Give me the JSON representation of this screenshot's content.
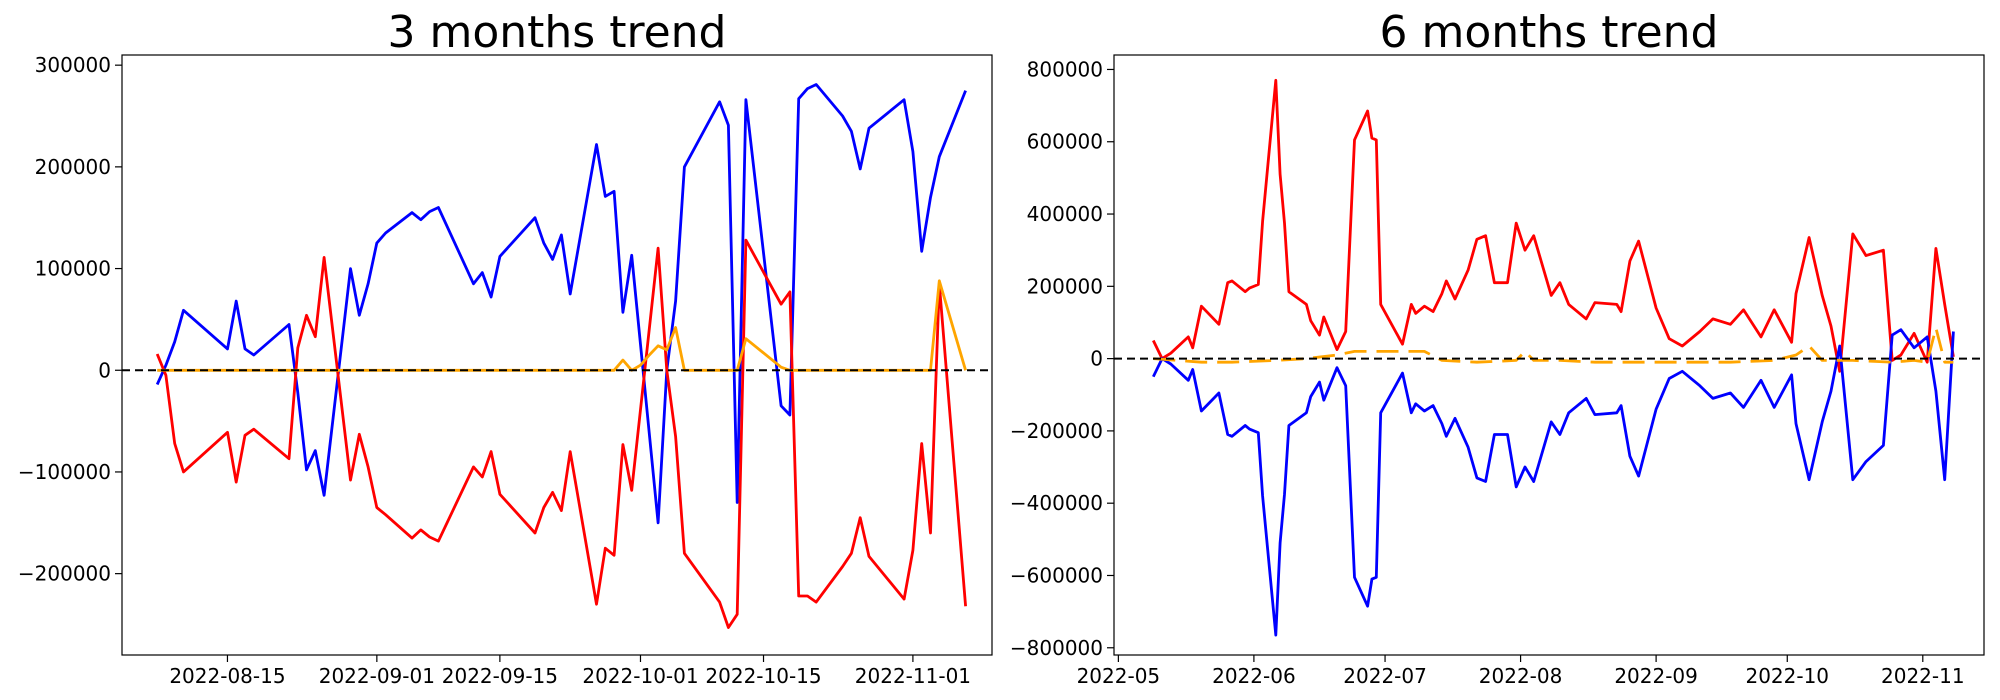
{
  "chart_data": [
    {
      "type": "line",
      "title": "3 months trend",
      "xlabel": "",
      "ylabel": "",
      "x_type": "date",
      "xlim": [
        "2022-08-03",
        "2022-11-10"
      ],
      "ylim": [
        -280000,
        310000
      ],
      "x_ticks": [
        "2022-08-15",
        "2022-09-01",
        "2022-09-15",
        "2022-10-01",
        "2022-10-15",
        "2022-11-01"
      ],
      "y_ticks": [
        -200000,
        -100000,
        0,
        100000,
        200000,
        300000
      ],
      "grid": false,
      "legend": "none",
      "zero_line": {
        "y": 0,
        "color": "#000000",
        "style": "dashed"
      },
      "series": [
        {
          "color": "#0000ff",
          "style": "solid",
          "x": [
            "2022-08-07",
            "2022-08-08",
            "2022-08-09",
            "2022-08-10",
            "2022-08-15",
            "2022-08-16",
            "2022-08-17",
            "2022-08-18",
            "2022-08-22",
            "2022-08-23",
            "2022-08-24",
            "2022-08-25",
            "2022-08-26",
            "2022-08-29",
            "2022-08-30",
            "2022-08-31",
            "2022-09-01",
            "2022-09-02",
            "2022-09-05",
            "2022-09-06",
            "2022-09-07",
            "2022-09-08",
            "2022-09-12",
            "2022-09-13",
            "2022-09-14",
            "2022-09-15",
            "2022-09-19",
            "2022-09-20",
            "2022-09-21",
            "2022-09-22",
            "2022-09-23",
            "2022-09-26",
            "2022-09-27",
            "2022-09-28",
            "2022-09-29",
            "2022-09-30",
            "2022-10-03",
            "2022-10-04",
            "2022-10-05",
            "2022-10-06",
            "2022-10-10",
            "2022-10-11",
            "2022-10-12",
            "2022-10-13",
            "2022-10-17",
            "2022-10-18",
            "2022-10-19",
            "2022-10-20",
            "2022-10-21",
            "2022-10-24",
            "2022-10-25",
            "2022-10-26",
            "2022-10-27",
            "2022-10-31",
            "2022-11-01",
            "2022-11-02",
            "2022-11-03",
            "2022-11-04",
            "2022-11-07"
          ],
          "y": [
            -14000,
            5000,
            28000,
            59000,
            21000,
            68000,
            21000,
            15000,
            45000,
            -22000,
            -98000,
            -79000,
            -123000,
            100000,
            54000,
            85000,
            125000,
            135000,
            155000,
            148000,
            156000,
            160000,
            85000,
            96000,
            72000,
            112000,
            150000,
            125000,
            109000,
            133000,
            75000,
            222000,
            171000,
            176000,
            57000,
            113000,
            -150000,
            0,
            68000,
            200000,
            264000,
            241000,
            -130000,
            266000,
            -35000,
            -44000,
            267000,
            277000,
            281000,
            250000,
            235000,
            198000,
            238000,
            266000,
            215000,
            117000,
            170000,
            210000,
            275000
          ]
        },
        {
          "color": "#ff0000",
          "style": "solid",
          "x": [
            "2022-08-07",
            "2022-08-08",
            "2022-08-09",
            "2022-08-10",
            "2022-08-15",
            "2022-08-16",
            "2022-08-17",
            "2022-08-18",
            "2022-08-22",
            "2022-08-23",
            "2022-08-24",
            "2022-08-25",
            "2022-08-26",
            "2022-08-29",
            "2022-08-30",
            "2022-08-31",
            "2022-09-01",
            "2022-09-02",
            "2022-09-05",
            "2022-09-06",
            "2022-09-07",
            "2022-09-08",
            "2022-09-12",
            "2022-09-13",
            "2022-09-14",
            "2022-09-15",
            "2022-09-19",
            "2022-09-20",
            "2022-09-21",
            "2022-09-22",
            "2022-09-23",
            "2022-09-26",
            "2022-09-27",
            "2022-09-28",
            "2022-09-29",
            "2022-09-30",
            "2022-10-03",
            "2022-10-04",
            "2022-10-05",
            "2022-10-06",
            "2022-10-10",
            "2022-10-11",
            "2022-10-12",
            "2022-10-13",
            "2022-10-17",
            "2022-10-18",
            "2022-10-19",
            "2022-10-20",
            "2022-10-21",
            "2022-10-24",
            "2022-10-25",
            "2022-10-26",
            "2022-10-27",
            "2022-10-31",
            "2022-11-01",
            "2022-11-02",
            "2022-11-03",
            "2022-11-04",
            "2022-11-07"
          ],
          "y": [
            16000,
            -5000,
            -72000,
            -100000,
            -61000,
            -110000,
            -64000,
            -58000,
            -87000,
            22000,
            54000,
            33000,
            111000,
            -108000,
            -63000,
            -95000,
            -135000,
            -142000,
            -165000,
            -157000,
            -164000,
            -168000,
            -95000,
            -105000,
            -80000,
            -122000,
            -160000,
            -135000,
            -120000,
            -138000,
            -80000,
            -230000,
            -175000,
            -182000,
            -73000,
            -118000,
            120000,
            0,
            -65000,
            -180000,
            -228000,
            -253000,
            -240000,
            128000,
            65000,
            77000,
            -222000,
            -222000,
            -228000,
            -193000,
            -180000,
            -145000,
            -183000,
            -225000,
            -177000,
            -72000,
            -160000,
            85000,
            -232000
          ]
        },
        {
          "color": "#ffa500",
          "style": "solid",
          "x": [
            "2022-08-07",
            "2022-08-30",
            "2022-08-31",
            "2022-09-01",
            "2022-09-12",
            "2022-09-28",
            "2022-09-29",
            "2022-09-30",
            "2022-10-01",
            "2022-10-02",
            "2022-10-03",
            "2022-10-04",
            "2022-10-05",
            "2022-10-06",
            "2022-10-12",
            "2022-10-13",
            "2022-10-17",
            "2022-10-18",
            "2022-11-02",
            "2022-11-03",
            "2022-11-04",
            "2022-11-07"
          ],
          "y": [
            0,
            0,
            0,
            0,
            0,
            0,
            10000,
            0,
            5000,
            15000,
            24000,
            20000,
            42000,
            0,
            0,
            31000,
            3000,
            0,
            0,
            0,
            88000,
            0
          ]
        }
      ]
    },
    {
      "type": "line",
      "title": "6 months trend",
      "xlabel": "",
      "ylabel": "",
      "x_type": "date",
      "xlim": [
        "2022-04-30",
        "2022-11-15"
      ],
      "ylim": [
        -820000,
        840000
      ],
      "x_ticks": [
        "2022-05",
        "2022-06",
        "2022-07",
        "2022-08",
        "2022-09",
        "2022-10",
        "2022-11"
      ],
      "y_ticks": [
        -800000,
        -600000,
        -400000,
        -200000,
        0,
        200000,
        400000,
        600000,
        800000
      ],
      "grid": false,
      "legend": "none",
      "zero_line": {
        "y": 0,
        "color": "#000000",
        "style": "dashed"
      },
      "series": [
        {
          "color": "#ff0000",
          "style": "solid",
          "x": [
            "2022-05-09",
            "2022-05-11",
            "2022-05-13",
            "2022-05-17",
            "2022-05-18",
            "2022-05-20",
            "2022-05-24",
            "2022-05-26",
            "2022-05-27",
            "2022-05-30",
            "2022-05-31",
            "2022-06-02",
            "2022-06-03",
            "2022-06-06",
            "2022-06-07",
            "2022-06-08",
            "2022-06-09",
            "2022-06-13",
            "2022-06-14",
            "2022-06-16",
            "2022-06-17",
            "2022-06-20",
            "2022-06-22",
            "2022-06-24",
            "2022-06-27",
            "2022-06-28",
            "2022-06-29",
            "2022-06-30",
            "2022-07-05",
            "2022-07-07",
            "2022-07-08",
            "2022-07-10",
            "2022-07-12",
            "2022-07-14",
            "2022-07-15",
            "2022-07-17",
            "2022-07-20",
            "2022-07-22",
            "2022-07-24",
            "2022-07-26",
            "2022-07-29",
            "2022-07-31",
            "2022-08-02",
            "2022-08-04",
            "2022-08-08",
            "2022-08-10",
            "2022-08-12",
            "2022-08-16",
            "2022-08-18",
            "2022-08-23",
            "2022-08-24",
            "2022-08-26",
            "2022-08-28",
            "2022-09-01",
            "2022-09-04",
            "2022-09-07",
            "2022-09-11",
            "2022-09-14",
            "2022-09-18",
            "2022-09-21",
            "2022-09-25",
            "2022-09-28",
            "2022-10-02",
            "2022-10-03",
            "2022-10-06",
            "2022-10-09",
            "2022-10-11",
            "2022-10-13",
            "2022-10-16",
            "2022-10-19",
            "2022-10-23",
            "2022-10-25",
            "2022-10-27",
            "2022-10-30",
            "2022-11-02",
            "2022-11-04",
            "2022-11-06",
            "2022-11-08"
          ],
          "y": [
            50000,
            0,
            15000,
            60000,
            30000,
            145000,
            95000,
            210000,
            215000,
            185000,
            195000,
            205000,
            380000,
            770000,
            510000,
            375000,
            185000,
            150000,
            105000,
            65000,
            115000,
            25000,
            75000,
            605000,
            685000,
            610000,
            605000,
            150000,
            40000,
            150000,
            125000,
            145000,
            130000,
            180000,
            215000,
            165000,
            245000,
            330000,
            340000,
            210000,
            210000,
            375000,
            300000,
            340000,
            175000,
            210000,
            150000,
            110000,
            155000,
            150000,
            130000,
            270000,
            325000,
            140000,
            55000,
            35000,
            75000,
            110000,
            95000,
            135000,
            60000,
            135000,
            45000,
            180000,
            335000,
            175000,
            90000,
            -35000,
            345000,
            285000,
            300000,
            -5000,
            10000,
            70000,
            -10000,
            305000,
            150000,
            5000
          ]
        },
        {
          "color": "#0000ff",
          "style": "solid",
          "x": [
            "2022-05-09",
            "2022-05-11",
            "2022-05-13",
            "2022-05-17",
            "2022-05-18",
            "2022-05-20",
            "2022-05-24",
            "2022-05-26",
            "2022-05-27",
            "2022-05-30",
            "2022-05-31",
            "2022-06-02",
            "2022-06-03",
            "2022-06-06",
            "2022-06-07",
            "2022-06-08",
            "2022-06-09",
            "2022-06-13",
            "2022-06-14",
            "2022-06-16",
            "2022-06-17",
            "2022-06-20",
            "2022-06-22",
            "2022-06-24",
            "2022-06-27",
            "2022-06-28",
            "2022-06-29",
            "2022-06-30",
            "2022-07-05",
            "2022-07-07",
            "2022-07-08",
            "2022-07-10",
            "2022-07-12",
            "2022-07-14",
            "2022-07-15",
            "2022-07-17",
            "2022-07-20",
            "2022-07-22",
            "2022-07-24",
            "2022-07-26",
            "2022-07-29",
            "2022-07-31",
            "2022-08-02",
            "2022-08-04",
            "2022-08-08",
            "2022-08-10",
            "2022-08-12",
            "2022-08-16",
            "2022-08-18",
            "2022-08-23",
            "2022-08-24",
            "2022-08-26",
            "2022-08-28",
            "2022-09-01",
            "2022-09-04",
            "2022-09-07",
            "2022-09-11",
            "2022-09-14",
            "2022-09-18",
            "2022-09-21",
            "2022-09-25",
            "2022-09-28",
            "2022-10-02",
            "2022-10-03",
            "2022-10-06",
            "2022-10-09",
            "2022-10-11",
            "2022-10-13",
            "2022-10-16",
            "2022-10-19",
            "2022-10-23",
            "2022-10-25",
            "2022-10-27",
            "2022-10-30",
            "2022-11-02",
            "2022-11-04",
            "2022-11-06",
            "2022-11-08"
          ],
          "y": [
            -50000,
            0,
            -15000,
            -60000,
            -30000,
            -145000,
            -95000,
            -210000,
            -215000,
            -185000,
            -195000,
            -205000,
            -380000,
            -765000,
            -510000,
            -375000,
            -185000,
            -150000,
            -105000,
            -65000,
            -115000,
            -25000,
            -75000,
            -605000,
            -685000,
            -610000,
            -605000,
            -150000,
            -40000,
            -150000,
            -125000,
            -145000,
            -130000,
            -180000,
            -215000,
            -165000,
            -245000,
            -330000,
            -340000,
            -210000,
            -210000,
            -355000,
            -300000,
            -340000,
            -175000,
            -210000,
            -150000,
            -110000,
            -155000,
            -150000,
            -130000,
            -270000,
            -325000,
            -140000,
            -55000,
            -35000,
            -75000,
            -110000,
            -95000,
            -135000,
            -60000,
            -135000,
            -45000,
            -180000,
            -335000,
            -175000,
            -90000,
            35000,
            -335000,
            -285000,
            -240000,
            65000,
            80000,
            30000,
            60000,
            -90000,
            -335000,
            75000
          ]
        },
        {
          "color": "#ffa500",
          "style": "dashed",
          "x": [
            "2022-05-09",
            "2022-05-20",
            "2022-05-27",
            "2022-06-06",
            "2022-06-13",
            "2022-06-20",
            "2022-06-24",
            "2022-07-05",
            "2022-07-10",
            "2022-07-14",
            "2022-07-22",
            "2022-07-31",
            "2022-08-02",
            "2022-08-04",
            "2022-08-10",
            "2022-08-18",
            "2022-08-28",
            "2022-09-11",
            "2022-09-18",
            "2022-09-28",
            "2022-10-03",
            "2022-10-06",
            "2022-10-09",
            "2022-10-16",
            "2022-10-25",
            "2022-10-30",
            "2022-11-02",
            "2022-11-04",
            "2022-11-06",
            "2022-11-08"
          ],
          "y": [
            0,
            -10000,
            -10000,
            -5000,
            0,
            10000,
            20000,
            20000,
            20000,
            -5000,
            -10000,
            -5000,
            20000,
            -5000,
            -5000,
            -10000,
            -10000,
            -10000,
            -10000,
            -5000,
            10000,
            35000,
            -5000,
            -5000,
            -10000,
            -5000,
            -10000,
            85000,
            -10000,
            -10000
          ]
        }
      ]
    }
  ]
}
